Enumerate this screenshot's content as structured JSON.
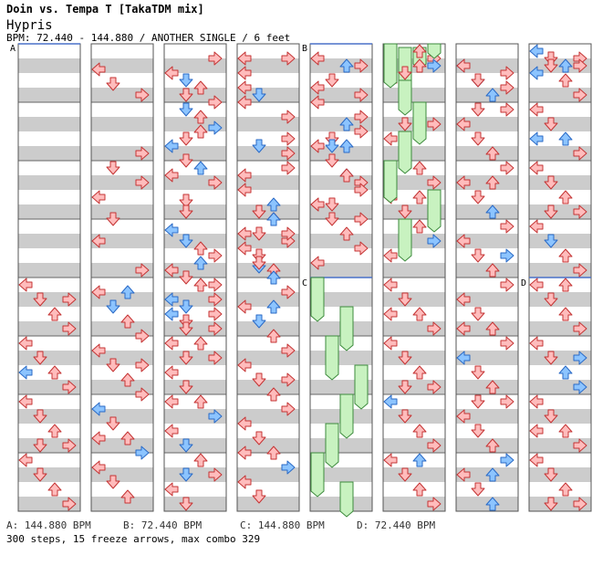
{
  "header": {
    "title": "Doin vs. Tempa T [TakaTDM mix]",
    "artist": "Hypris",
    "info": "BPM: 72.440 - 144.880 / ANOTHER SINGLE / 6 feet"
  },
  "sections": [
    {
      "label": "A",
      "bpm": "A: 144.880 BPM"
    },
    {
      "label": "B",
      "bpm": "B: 72.440 BPM"
    },
    {
      "label": "C",
      "bpm": "C: 144.880 BPM"
    },
    {
      "label": "D",
      "bpm": "D: 72.440 BPM"
    }
  ],
  "footer": {
    "stats": "300 steps, 15 freeze arrows, max combo 329"
  },
  "colors": {
    "red_fill": "#ffbcbc",
    "red_stroke": "#c43434",
    "blue_fill": "#8cc4ff",
    "blue_stroke": "#2a6ac6",
    "freeze_fill": "#c8f2c0",
    "freeze_stroke": "#3c8a3c",
    "row_gray": "#cccccc",
    "marker_blue": "#4a70c8"
  },
  "chart_data": {
    "type": "step-chart",
    "columns": [
      {
        "index": 1,
        "arrows": [
          {
            "lane": "left",
            "beat": 1.25,
            "color": "red"
          },
          {
            "lane": "down",
            "beat": 2.25,
            "color": "red"
          },
          {
            "lane": "right",
            "beat": 3.0,
            "color": "red"
          },
          {
            "lane": "right",
            "beat": 7.0,
            "color": "red"
          },
          {
            "lane": "down",
            "beat": 8.0,
            "color": "red"
          },
          {
            "lane": "right",
            "beat": 9.0,
            "color": "red"
          },
          {
            "lane": "left",
            "beat": 10.0,
            "color": "red"
          },
          {
            "lane": "down",
            "beat": 11.5,
            "color": "red"
          },
          {
            "lane": "left",
            "beat": 13.0,
            "color": "red"
          },
          {
            "lane": "right",
            "beat": 15.0,
            "color": "red"
          }
        ]
      },
      {
        "index": 2,
        "arrows": [
          {
            "lane": "right",
            "beat": 0.5,
            "color": "red"
          },
          {
            "lane": "left",
            "beat": 1.5,
            "color": "red"
          },
          {
            "lane": "down",
            "beat": 2.0,
            "color": "blue"
          },
          {
            "lane": "up",
            "beat": 2.5,
            "color": "red"
          },
          {
            "lane": "down",
            "beat": 3.0,
            "color": "red"
          },
          {
            "lane": "right",
            "beat": 3.5,
            "color": "red"
          },
          {
            "lane": "down",
            "beat": 4.0,
            "color": "blue"
          },
          {
            "lane": "up",
            "beat": 4.5,
            "color": "red"
          },
          {
            "lane": "right",
            "beat": 5.25,
            "color": "blue"
          },
          {
            "lane": "up",
            "beat": 5.5,
            "color": "red"
          },
          {
            "lane": "down",
            "beat": 6.0,
            "color": "red"
          },
          {
            "lane": "left",
            "beat": 6.5,
            "color": "blue"
          },
          {
            "lane": "down",
            "beat": 7.5,
            "color": "red"
          },
          {
            "lane": "up",
            "beat": 8.0,
            "color": "blue"
          },
          {
            "lane": "left",
            "beat": 8.5,
            "color": "red"
          },
          {
            "lane": "right",
            "beat": 9.0,
            "color": "red"
          },
          {
            "lane": "down",
            "beat": 10.25,
            "color": "red"
          },
          {
            "lane": "down",
            "beat": 11.0,
            "color": "red"
          },
          {
            "lane": "left",
            "beat": 12.25,
            "color": "blue"
          },
          {
            "lane": "down",
            "beat": 13.0,
            "color": "blue"
          },
          {
            "lane": "up",
            "beat": 13.5,
            "color": "red"
          },
          {
            "lane": "right",
            "beat": 14.0,
            "color": "red"
          },
          {
            "lane": "up",
            "beat": 14.5,
            "color": "blue"
          },
          {
            "lane": "left",
            "beat": 15.0,
            "color": "red"
          },
          {
            "lane": "down",
            "beat": 15.5,
            "color": "red"
          },
          {
            "lane": "right",
            "beat": 16.0,
            "color": "red"
          },
          {
            "lane": "left",
            "beat": 17.0,
            "color": "blue"
          },
          {
            "lane": "down",
            "beat": 17.5,
            "color": "blue"
          },
          {
            "lane": "right",
            "beat": 18.0,
            "color": "red"
          },
          {
            "lane": "down",
            "beat": 18.5,
            "color": "red"
          },
          {
            "lane": "left",
            "beat": 20.0,
            "color": "red"
          },
          {
            "lane": "down",
            "beat": 21.0,
            "color": "red"
          }
        ]
      },
      {
        "index": 3,
        "arrows": [
          {
            "lane": "left",
            "beat": 0.5,
            "color": "red"
          },
          {
            "lane": "right",
            "beat": 0.5,
            "color": "red"
          },
          {
            "lane": "left",
            "beat": 1.5,
            "color": "red"
          },
          {
            "lane": "left",
            "beat": 2.5,
            "color": "red"
          },
          {
            "lane": "down",
            "beat": 3.0,
            "color": "blue"
          },
          {
            "lane": "left",
            "beat": 3.5,
            "color": "red"
          },
          {
            "lane": "right",
            "beat": 4.5,
            "color": "red"
          },
          {
            "lane": "down",
            "beat": 6.5,
            "color": "blue"
          },
          {
            "lane": "right",
            "beat": 6.0,
            "color": "red"
          },
          {
            "lane": "right",
            "beat": 7.0,
            "color": "red"
          },
          {
            "lane": "right",
            "beat": 8.0,
            "color": "red"
          },
          {
            "lane": "left",
            "beat": 8.5,
            "color": "red"
          },
          {
            "lane": "left",
            "beat": 9.5,
            "color": "red"
          },
          {
            "lane": "up",
            "beat": 10.5,
            "color": "blue"
          },
          {
            "lane": "down",
            "beat": 11.0,
            "color": "red"
          },
          {
            "lane": "up",
            "beat": 11.5,
            "color": "red"
          },
          {
            "lane": "left",
            "beat": 12.5,
            "color": "red"
          },
          {
            "lane": "right",
            "beat": 13.0,
            "color": "red"
          },
          {
            "lane": "down",
            "beat": 14.0,
            "color": "red"
          },
          {
            "lane": "down",
            "beat": 14.75,
            "color": "blue"
          },
          {
            "lane": "up",
            "beat": 15.0,
            "color": "red"
          }
        ]
      },
      {
        "index": 4,
        "arrows": [
          {
            "lane": "left",
            "beat": 0.5,
            "color": "red"
          },
          {
            "lane": "up",
            "beat": 1.0,
            "color": "blue"
          },
          {
            "lane": "right",
            "beat": 1.0,
            "color": "red"
          },
          {
            "lane": "down",
            "beat": 2.0,
            "color": "red"
          },
          {
            "lane": "left",
            "beat": 2.5,
            "color": "red"
          },
          {
            "lane": "right",
            "beat": 3.0,
            "color": "red"
          },
          {
            "lane": "left",
            "beat": 3.5,
            "color": "red"
          },
          {
            "lane": "right",
            "beat": 4.5,
            "color": "red"
          },
          {
            "lane": "up",
            "beat": 5.0,
            "color": "blue"
          },
          {
            "lane": "right",
            "beat": 5.5,
            "color": "red"
          },
          {
            "lane": "down",
            "beat": 6.0,
            "color": "red"
          },
          {
            "lane": "down",
            "beat": 6.5,
            "color": "blue"
          },
          {
            "lane": "up",
            "beat": 8.5,
            "color": "blue"
          },
          {
            "lane": "right",
            "beat": 9.0,
            "color": "red"
          },
          {
            "lane": "down",
            "beat": 10.5,
            "color": "red"
          },
          {
            "lane": "left",
            "beat": 10.5,
            "color": "red"
          }
        ]
      },
      {
        "index": 5,
        "freezes": [
          {
            "lane": "down",
            "start": 0,
            "end": 3,
            "color": "green"
          },
          {
            "lane": "up",
            "start": 0,
            "end": 1.5,
            "color": "green"
          }
        ],
        "arrows": [
          {
            "lane": "right",
            "beat": 0.5,
            "color": "red"
          },
          {
            "lane": "down",
            "beat": 1.5,
            "color": "red"
          },
          {
            "lane": "left",
            "beat": 1.5,
            "color": "red"
          },
          {
            "lane": "up",
            "beat": 1.0,
            "color": "red"
          }
        ]
      },
      {
        "index": 6,
        "arrows": [
          {
            "lane": "left",
            "beat": 1.0,
            "color": "blue"
          },
          {
            "lane": "right",
            "beat": 1.5,
            "color": "red"
          },
          {
            "lane": "down",
            "beat": 2.0,
            "color": "blue"
          },
          {
            "lane": "right",
            "beat": 2.5,
            "color": "red"
          }
        ]
      },
      {
        "index": 7,
        "arrows": [
          {
            "lane": "down",
            "beat": 0.5,
            "color": "red"
          },
          {
            "lane": "right",
            "beat": 0.5,
            "color": "red"
          },
          {
            "lane": "up",
            "beat": 1.0,
            "color": "blue"
          },
          {
            "lane": "left",
            "beat": 1.5,
            "color": "blue"
          }
        ]
      }
    ]
  }
}
